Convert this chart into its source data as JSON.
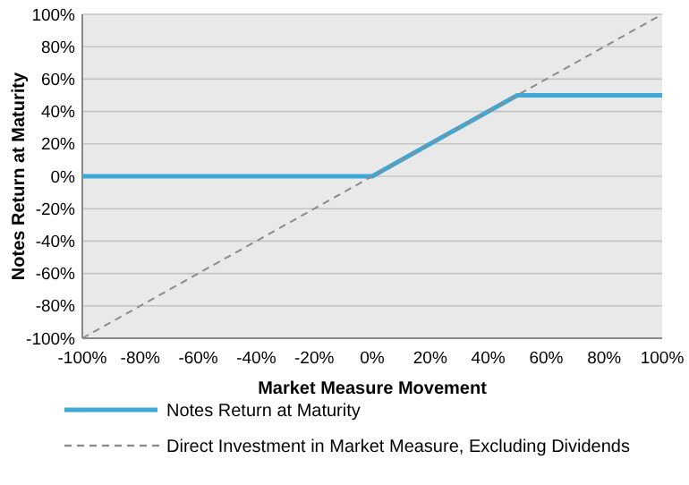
{
  "chart_data": {
    "type": "line",
    "xlabel": "Market Measure Movement",
    "ylabel": "Notes Return at Maturity",
    "x": [
      -100,
      0,
      50,
      100
    ],
    "series": [
      {
        "name": "Notes Return at Maturity",
        "color": "#3ea8d6",
        "values": [
          0,
          0,
          50,
          50
        ],
        "line_style": "solid"
      },
      {
        "name": "Direct Investment in Market Measure, Excluding Dividends",
        "color": "#8c8c8c",
        "x": [
          -100,
          100
        ],
        "values": [
          -100,
          100
        ],
        "line_style": "dashed"
      }
    ],
    "xlim": [
      -100,
      100
    ],
    "ylim": [
      -100,
      100
    ],
    "xticks": [
      {
        "value": -100,
        "label": "-100%"
      },
      {
        "value": -80,
        "label": "-80%"
      },
      {
        "value": -60,
        "label": "-60%"
      },
      {
        "value": -40,
        "label": "-40%"
      },
      {
        "value": -20,
        "label": "-20%"
      },
      {
        "value": 0,
        "label": "0%"
      },
      {
        "value": 20,
        "label": "20%"
      },
      {
        "value": 40,
        "label": "40%"
      },
      {
        "value": 60,
        "label": "60%"
      },
      {
        "value": 80,
        "label": "80%"
      },
      {
        "value": 100,
        "label": "100%"
      }
    ],
    "yticks": [
      {
        "value": -100,
        "label": "-100%"
      },
      {
        "value": -80,
        "label": "-80%"
      },
      {
        "value": -60,
        "label": "-60%"
      },
      {
        "value": -40,
        "label": "-40%"
      },
      {
        "value": -20,
        "label": "-20%"
      },
      {
        "value": 0,
        "label": "0%"
      },
      {
        "value": 20,
        "label": "20%"
      },
      {
        "value": 40,
        "label": "40%"
      },
      {
        "value": 60,
        "label": "60%"
      },
      {
        "value": 80,
        "label": "80%"
      },
      {
        "value": 100,
        "label": "100%"
      }
    ],
    "grid": "y",
    "legend": "bottom"
  }
}
